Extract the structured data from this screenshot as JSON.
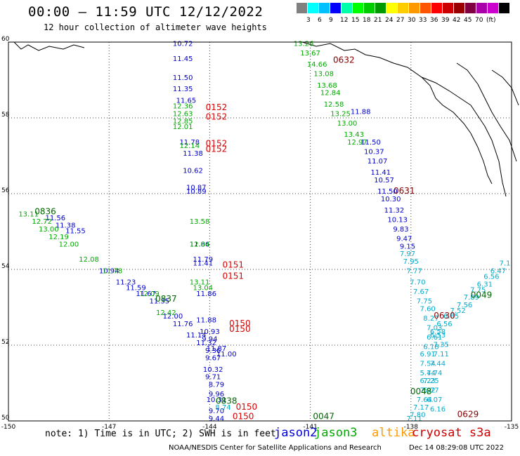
{
  "header": {
    "title": "00:00 – 11:59 UTC 12/12/2022",
    "subtitle": "12 hour collection of altimeter wave heights"
  },
  "legend": {
    "colors": [
      "#808080",
      "#00ffff",
      "#00c0ff",
      "#0000ff",
      "#00ffaa",
      "#00ff00",
      "#00cc00",
      "#009900",
      "#ffff00",
      "#ffcc00",
      "#ff9900",
      "#ff5500",
      "#ff0000",
      "#cc0000",
      "#990000",
      "#800040",
      "#aa00aa",
      "#cc00cc",
      "#000000"
    ],
    "labels": [
      "3",
      "6",
      "9",
      "12",
      "15",
      "18",
      "21",
      "24",
      "27",
      "30",
      "33",
      "36",
      "39",
      "42",
      "45",
      "70",
      "(ft)"
    ]
  },
  "map": {
    "lat_range": [
      50,
      60
    ],
    "lon_range": [
      -150,
      -135
    ],
    "lat_labels": [
      "50",
      "52",
      "54",
      "56",
      "58",
      "60"
    ],
    "lon_labels": [
      "-150",
      "-147",
      "-144",
      "-141",
      "-138",
      "-135"
    ],
    "tracks": [
      {
        "sat": "jason2",
        "color": "#0000cc",
        "points": [
          {
            "lat": 59.9,
            "lon": -144.8,
            "v": "10.72"
          },
          {
            "lat": 59.5,
            "lon": -144.8,
            "v": "11.45"
          },
          {
            "lat": 59.0,
            "lon": -144.8,
            "v": "11.50"
          },
          {
            "lat": 58.7,
            "lon": -144.8,
            "v": "11.35"
          },
          {
            "lat": 58.4,
            "lon": -144.7,
            "v": "11.65"
          },
          {
            "lat": 57.3,
            "lon": -144.6,
            "v": "11.78"
          },
          {
            "lat": 57.0,
            "lon": -144.5,
            "v": "11.38"
          },
          {
            "lat": 56.55,
            "lon": -144.5,
            "v": "10.62"
          },
          {
            "lat": 56.1,
            "lon": -144.4,
            "v": "10.87"
          },
          {
            "lat": 56.0,
            "lon": -144.4,
            "v": "10.89"
          },
          {
            "lat": 54.6,
            "lon": -144.3,
            "v": "11.86"
          },
          {
            "lat": 54.2,
            "lon": -144.2,
            "v": "11.79"
          },
          {
            "lat": 54.1,
            "lon": -144.2,
            "v": "11.41"
          },
          {
            "lat": 53.3,
            "lon": -144.1,
            "v": "11.86"
          },
          {
            "lat": 52.6,
            "lon": -144.1,
            "v": "11.88"
          },
          {
            "lat": 52.3,
            "lon": -144.0,
            "v": "10.93"
          },
          {
            "lat": 52.1,
            "lon": -144.0,
            "v": "9.94"
          },
          {
            "lat": 51.8,
            "lon": -143.9,
            "v": "9.36"
          },
          {
            "lat": 51.6,
            "lon": -143.9,
            "v": "9.67"
          },
          {
            "lat": 51.3,
            "lon": -143.9,
            "v": "10.32"
          },
          {
            "lat": 51.1,
            "lon": -143.9,
            "v": "9.71"
          },
          {
            "lat": 50.9,
            "lon": -143.8,
            "v": "8.79"
          },
          {
            "lat": 50.65,
            "lon": -143.8,
            "v": "9.96"
          },
          {
            "lat": 50.5,
            "lon": -143.8,
            "v": "10.31"
          },
          {
            "lat": 50.2,
            "lon": -143.8,
            "v": "9.70"
          },
          {
            "lat": 50.0,
            "lon": -143.8,
            "v": "9.44"
          },
          {
            "lat": 58.1,
            "lon": -139.5,
            "v": "11.88"
          },
          {
            "lat": 57.3,
            "lon": -139.2,
            "v": "11.50"
          },
          {
            "lat": 57.05,
            "lon": -139.1,
            "v": "10.37"
          },
          {
            "lat": 56.8,
            "lon": -139.0,
            "v": "11.07"
          },
          {
            "lat": 56.5,
            "lon": -138.9,
            "v": "11.41"
          },
          {
            "lat": 56.3,
            "lon": -138.8,
            "v": "10.57"
          },
          {
            "lat": 56.0,
            "lon": -138.7,
            "v": "11.50"
          },
          {
            "lat": 55.8,
            "lon": -138.6,
            "v": "10.30"
          },
          {
            "lat": 55.5,
            "lon": -138.5,
            "v": "11.32"
          },
          {
            "lat": 55.25,
            "lon": -138.4,
            "v": "10.13"
          },
          {
            "lat": 55.0,
            "lon": -138.3,
            "v": "9.83"
          },
          {
            "lat": 54.75,
            "lon": -138.2,
            "v": "9.47"
          },
          {
            "lat": 54.55,
            "lon": -138.1,
            "v": "9.15"
          },
          {
            "lat": 55.3,
            "lon": -148.6,
            "v": "11.56"
          },
          {
            "lat": 55.1,
            "lon": -148.3,
            "v": "11.38"
          },
          {
            "lat": 54.95,
            "lon": -148.0,
            "v": "11.55"
          },
          {
            "lat": 53.9,
            "lon": -147.0,
            "v": "10.94"
          },
          {
            "lat": 53.6,
            "lon": -146.5,
            "v": "11.23"
          },
          {
            "lat": 53.45,
            "lon": -146.2,
            "v": "11.59"
          },
          {
            "lat": 53.3,
            "lon": -145.9,
            "v": "11.67"
          },
          {
            "lat": 53.1,
            "lon": -145.5,
            "v": "11.35"
          },
          {
            "lat": 52.7,
            "lon": -145.1,
            "v": "12.00"
          },
          {
            "lat": 52.5,
            "lon": -144.8,
            "v": "11.76"
          },
          {
            "lat": 52.2,
            "lon": -144.4,
            "v": "11.14"
          },
          {
            "lat": 52.0,
            "lon": -144.1,
            "v": "11.32"
          },
          {
            "lat": 51.85,
            "lon": -143.8,
            "v": "11.87"
          },
          {
            "lat": 51.7,
            "lon": -143.5,
            "v": "11.00"
          }
        ]
      },
      {
        "sat": "jason3",
        "color": "#00aa00",
        "points": [
          {
            "lat": 59.9,
            "lon": -141.2,
            "v": "13.26"
          },
          {
            "lat": 59.65,
            "lon": -141.0,
            "v": "13.67"
          },
          {
            "lat": 59.35,
            "lon": -140.8,
            "v": "14.66"
          },
          {
            "lat": 59.1,
            "lon": -140.6,
            "v": "13.08"
          },
          {
            "lat": 58.8,
            "lon": -140.5,
            "v": "13.68"
          },
          {
            "lat": 58.6,
            "lon": -140.4,
            "v": "12.84"
          },
          {
            "lat": 58.3,
            "lon": -140.3,
            "v": "12.58"
          },
          {
            "lat": 58.05,
            "lon": -140.1,
            "v": "13.25"
          },
          {
            "lat": 57.8,
            "lon": -139.9,
            "v": "13.00"
          },
          {
            "lat": 57.5,
            "lon": -139.7,
            "v": "13.43"
          },
          {
            "lat": 57.3,
            "lon": -139.6,
            "v": "12.97"
          },
          {
            "lat": 58.25,
            "lon": -144.8,
            "v": "12.36"
          },
          {
            "lat": 58.05,
            "lon": -144.8,
            "v": "12.63"
          },
          {
            "lat": 57.85,
            "lon": -144.8,
            "v": "12.85"
          },
          {
            "lat": 57.7,
            "lon": -144.8,
            "v": "12.01"
          },
          {
            "lat": 57.2,
            "lon": -144.6,
            "v": "12.14"
          },
          {
            "lat": 55.2,
            "lon": -144.3,
            "v": "13.58"
          },
          {
            "lat": 54.6,
            "lon": -144.3,
            "v": "12.04"
          },
          {
            "lat": 53.6,
            "lon": -144.3,
            "v": "13.11"
          },
          {
            "lat": 53.45,
            "lon": -144.2,
            "v": "13.04"
          },
          {
            "lat": 55.4,
            "lon": -149.4,
            "v": "13.11"
          },
          {
            "lat": 55.2,
            "lon": -149.0,
            "v": "12.72"
          },
          {
            "lat": 55.0,
            "lon": -148.8,
            "v": "13.00"
          },
          {
            "lat": 54.8,
            "lon": -148.5,
            "v": "12.19"
          },
          {
            "lat": 54.6,
            "lon": -148.2,
            "v": "12.00"
          },
          {
            "lat": 54.2,
            "lon": -147.6,
            "v": "12.08"
          },
          {
            "lat": 53.9,
            "lon": -146.9,
            "v": "11.78"
          },
          {
            "lat": 53.3,
            "lon": -145.8,
            "v": "12.09"
          },
          {
            "lat": 52.8,
            "lon": -145.3,
            "v": "12.42"
          }
        ]
      },
      {
        "sat": "altika",
        "color": "#00aacc",
        "points": [
          {
            "lat": 54.35,
            "lon": -138.1,
            "v": "7.97"
          },
          {
            "lat": 54.15,
            "lon": -138.0,
            "v": "7.95"
          },
          {
            "lat": 53.9,
            "lon": -137.9,
            "v": "7.77"
          },
          {
            "lat": 53.6,
            "lon": -137.8,
            "v": "7.70"
          },
          {
            "lat": 53.35,
            "lon": -137.7,
            "v": "7.67"
          },
          {
            "lat": 53.1,
            "lon": -137.6,
            "v": "7.75"
          },
          {
            "lat": 52.9,
            "lon": -137.5,
            "v": "7.60"
          },
          {
            "lat": 52.65,
            "lon": -137.4,
            "v": "8.27"
          },
          {
            "lat": 52.4,
            "lon": -137.3,
            "v": "7.03"
          },
          {
            "lat": 52.2,
            "lon": -137.2,
            "v": "6.53"
          },
          {
            "lat": 51.95,
            "lon": -137.1,
            "v": "7.35"
          },
          {
            "lat": 51.7,
            "lon": -137.1,
            "v": "7.11"
          },
          {
            "lat": 51.45,
            "lon": -137.2,
            "v": "7.44"
          },
          {
            "lat": 51.2,
            "lon": -137.3,
            "v": "7.74"
          },
          {
            "lat": 51.0,
            "lon": -137.4,
            "v": "7.25"
          },
          {
            "lat": 50.75,
            "lon": -137.5,
            "v": "7.92"
          },
          {
            "lat": 50.5,
            "lon": -137.6,
            "v": "7.64"
          },
          {
            "lat": 50.3,
            "lon": -137.7,
            "v": "7.17"
          },
          {
            "lat": 50.1,
            "lon": -137.8,
            "v": "7.80"
          },
          {
            "lat": 50.0,
            "lon": -137.9,
            "v": "7.11"
          },
          {
            "lat": 54.1,
            "lon": -135.2,
            "v": "7.1"
          },
          {
            "lat": 53.9,
            "lon": -135.4,
            "v": "6.47"
          },
          {
            "lat": 53.75,
            "lon": -135.6,
            "v": "6.56"
          },
          {
            "lat": 53.55,
            "lon": -135.8,
            "v": "6.31"
          },
          {
            "lat": 53.4,
            "lon": -136.0,
            "v": "7.75"
          },
          {
            "lat": 53.2,
            "lon": -136.2,
            "v": "7.89"
          },
          {
            "lat": 53.0,
            "lon": -136.4,
            "v": "7.56"
          },
          {
            "lat": 52.85,
            "lon": -136.6,
            "v": "7.52"
          },
          {
            "lat": 52.7,
            "lon": -136.8,
            "v": "6.85"
          },
          {
            "lat": 52.5,
            "lon": -137.0,
            "v": "6.56"
          },
          {
            "lat": 52.3,
            "lon": -137.2,
            "v": "6.58"
          },
          {
            "lat": 52.15,
            "lon": -137.3,
            "v": "6.61"
          },
          {
            "lat": 51.9,
            "lon": -137.4,
            "v": "6.18"
          },
          {
            "lat": 51.7,
            "lon": -137.5,
            "v": "6.91"
          },
          {
            "lat": 51.45,
            "lon": -137.5,
            "v": "7.54"
          },
          {
            "lat": 51.2,
            "lon": -137.5,
            "v": "5.44"
          },
          {
            "lat": 51.0,
            "lon": -137.5,
            "v": "6.23"
          },
          {
            "lat": 50.75,
            "lon": -137.4,
            "v": "5.77"
          },
          {
            "lat": 50.5,
            "lon": -137.3,
            "v": "6.07"
          },
          {
            "lat": 50.25,
            "lon": -137.2,
            "v": "6.16"
          },
          {
            "lat": 50.3,
            "lon": -143.6,
            "v": "8.74"
          }
        ]
      },
      {
        "sat": "cryosat",
        "color": "#dd0000",
        "points": [
          {
            "lat": 58.2,
            "lon": -143.8,
            "v": "0152"
          },
          {
            "lat": 57.95,
            "lon": -143.8,
            "v": "0152"
          },
          {
            "lat": 57.25,
            "lon": -143.8,
            "v": "0152"
          },
          {
            "lat": 57.1,
            "lon": -143.8,
            "v": "0152"
          },
          {
            "lat": 54.05,
            "lon": -143.3,
            "v": "0151"
          },
          {
            "lat": 53.75,
            "lon": -143.3,
            "v": "0151"
          },
          {
            "lat": 52.5,
            "lon": -143.1,
            "v": "0150"
          },
          {
            "lat": 52.35,
            "lon": -143.1,
            "v": "0150"
          },
          {
            "lat": 50.3,
            "lon": -142.9,
            "v": "0150"
          },
          {
            "lat": 50.05,
            "lon": -143.0,
            "v": "0150"
          }
        ]
      },
      {
        "sat": "time-dark",
        "color": "#880000",
        "points": [
          {
            "lat": 59.45,
            "lon": -140.0,
            "v": "0632"
          },
          {
            "lat": 56.0,
            "lon": -138.2,
            "v": "0631"
          },
          {
            "lat": 52.7,
            "lon": -137.0,
            "v": "0630"
          },
          {
            "lat": 50.1,
            "lon": -136.3,
            "v": "0629"
          }
        ]
      },
      {
        "sat": "time-green",
        "color": "#006600",
        "points": [
          {
            "lat": 55.45,
            "lon": -148.9,
            "v": "0836"
          },
          {
            "lat": 53.15,
            "lon": -145.3,
            "v": "0837"
          },
          {
            "lat": 50.45,
            "lon": -143.5,
            "v": "0838"
          },
          {
            "lat": 53.25,
            "lon": -135.9,
            "v": "0049"
          },
          {
            "lat": 50.7,
            "lon": -137.7,
            "v": "0048"
          },
          {
            "lat": 50.05,
            "lon": -140.6,
            "v": "0047"
          }
        ]
      }
    ]
  },
  "footer": {
    "note": "note: 1) Time is in UTC; 2) SWH is in feet",
    "sats": [
      {
        "name": "jason2",
        "color": "#0000dd"
      },
      {
        "name": "jason3",
        "color": "#00aa00"
      },
      {
        "name": "altika",
        "color": "#ff9900"
      },
      {
        "name": "cryosat s3a",
        "color": "#cc0000"
      }
    ],
    "credit": "NOAA/NESDIS Center for Satellite Applications and Research",
    "stamp": "Dec 14 08:29:08 UTC 2022"
  }
}
